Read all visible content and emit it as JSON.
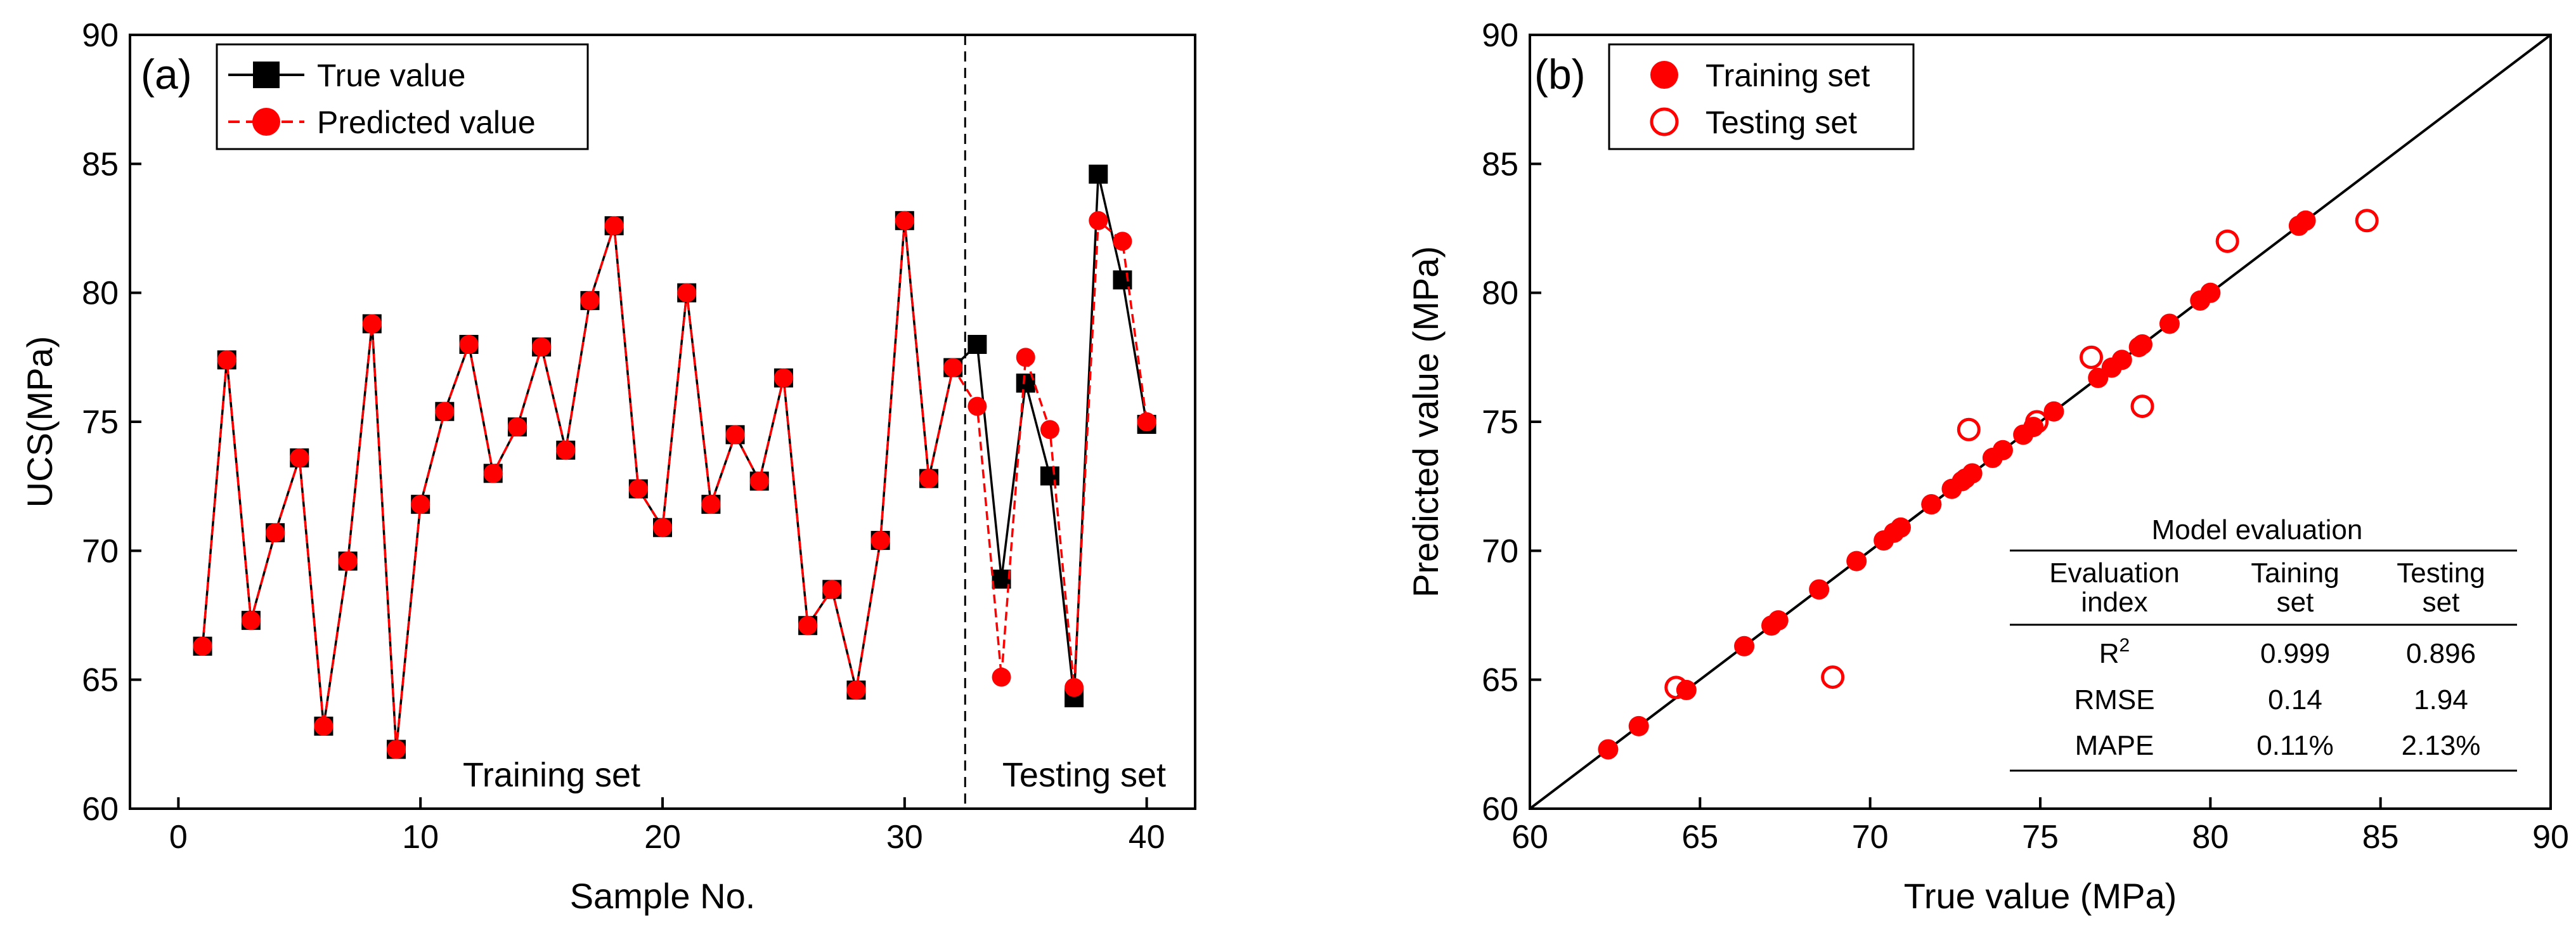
{
  "chart_data": [
    {
      "type": "line",
      "panel_label": "(a)",
      "xlabel": "Sample No.",
      "ylabel": "UCS(MPa)",
      "xlim": [
        -2,
        42
      ],
      "ylim": [
        60,
        90
      ],
      "xticks": [
        0,
        10,
        20,
        30,
        40
      ],
      "yticks": [
        60,
        65,
        70,
        75,
        80,
        85,
        90
      ],
      "legend_position": "top-left",
      "split_x": 32.5,
      "region_labels": {
        "train": "Training set",
        "test": "Testing set"
      },
      "x": [
        1,
        2,
        3,
        4,
        5,
        6,
        7,
        8,
        9,
        10,
        11,
        12,
        13,
        14,
        15,
        16,
        17,
        18,
        19,
        20,
        21,
        22,
        23,
        24,
        25,
        26,
        27,
        28,
        29,
        30,
        31,
        32,
        33,
        34,
        35,
        36,
        37,
        38,
        39,
        40
      ],
      "series": [
        {
          "name": "True value",
          "color": "#000000",
          "marker": "square",
          "line": "solid",
          "values": [
            66.3,
            77.4,
            67.3,
            70.7,
            73.6,
            63.2,
            69.6,
            78.8,
            62.3,
            71.8,
            75.4,
            78.0,
            73.0,
            74.8,
            77.9,
            73.9,
            79.7,
            82.6,
            72.4,
            70.9,
            80.0,
            71.8,
            74.5,
            72.7,
            76.7,
            67.1,
            68.5,
            64.6,
            70.4,
            82.8,
            72.8,
            77.1,
            78.0,
            68.9,
            76.5,
            72.9,
            64.3,
            84.6,
            80.5,
            74.9
          ]
        },
        {
          "name": "Predicted value",
          "color": "#ff0000",
          "marker": "circle",
          "line": "dashed",
          "values": [
            66.3,
            77.4,
            67.3,
            70.7,
            73.6,
            63.2,
            69.6,
            78.8,
            62.3,
            71.8,
            75.4,
            78.0,
            73.0,
            74.8,
            77.9,
            73.9,
            79.7,
            82.6,
            72.4,
            70.9,
            80.0,
            71.8,
            74.5,
            72.7,
            76.7,
            67.1,
            68.5,
            64.6,
            70.4,
            82.8,
            72.8,
            77.1,
            75.6,
            65.1,
            77.5,
            74.7,
            64.7,
            82.8,
            82.0,
            75.0
          ]
        }
      ]
    },
    {
      "type": "scatter",
      "panel_label": "(b)",
      "xlabel": "True value (MPa)",
      "ylabel": "Predicted value (MPa)",
      "xlim": [
        60,
        90
      ],
      "ylim": [
        60,
        90
      ],
      "xticks": [
        60,
        65,
        70,
        75,
        80,
        85,
        90
      ],
      "yticks": [
        60,
        65,
        70,
        75,
        80,
        85,
        90
      ],
      "legend_position": "top-left",
      "reference_line": "y = x",
      "series": [
        {
          "name": "Training set",
          "color": "#ff0000",
          "marker": "filled-circle",
          "x": [
            66.3,
            77.4,
            67.3,
            70.7,
            73.6,
            63.2,
            69.6,
            78.8,
            62.3,
            71.8,
            75.4,
            78.0,
            73.0,
            74.8,
            77.9,
            73.9,
            79.7,
            82.6,
            72.4,
            70.9,
            80.0,
            71.8,
            74.5,
            72.7,
            76.7,
            67.1,
            68.5,
            64.6,
            70.4,
            82.8,
            72.8,
            77.1
          ],
          "y": [
            66.3,
            77.4,
            67.3,
            70.7,
            73.6,
            63.2,
            69.6,
            78.8,
            62.3,
            71.8,
            75.4,
            78.0,
            73.0,
            74.8,
            77.9,
            73.9,
            79.7,
            82.6,
            72.4,
            70.9,
            80.0,
            71.8,
            74.5,
            72.7,
            76.7,
            67.1,
            68.5,
            64.6,
            70.4,
            82.8,
            72.8,
            77.1
          ]
        },
        {
          "name": "Testing set",
          "color": "#ff0000",
          "marker": "open-circle",
          "x": [
            78.0,
            68.9,
            76.5,
            72.9,
            64.3,
            84.6,
            80.5,
            74.9
          ],
          "y": [
            75.6,
            65.1,
            77.5,
            74.7,
            64.7,
            82.8,
            82.0,
            75.0
          ]
        }
      ],
      "table": {
        "title": "Model evaluation",
        "headers": [
          [
            "Evaluation",
            "index"
          ],
          [
            "Taining",
            "set"
          ],
          [
            "Testing",
            "set"
          ]
        ],
        "rows": [
          {
            "index": "R",
            "sup": "2",
            "train": "0.999",
            "test": "0.896"
          },
          {
            "index": "RMSE",
            "train": "0.14",
            "test": "1.94"
          },
          {
            "index": "MAPE",
            "train": "0.11%",
            "test": "2.13%"
          }
        ]
      }
    }
  ]
}
